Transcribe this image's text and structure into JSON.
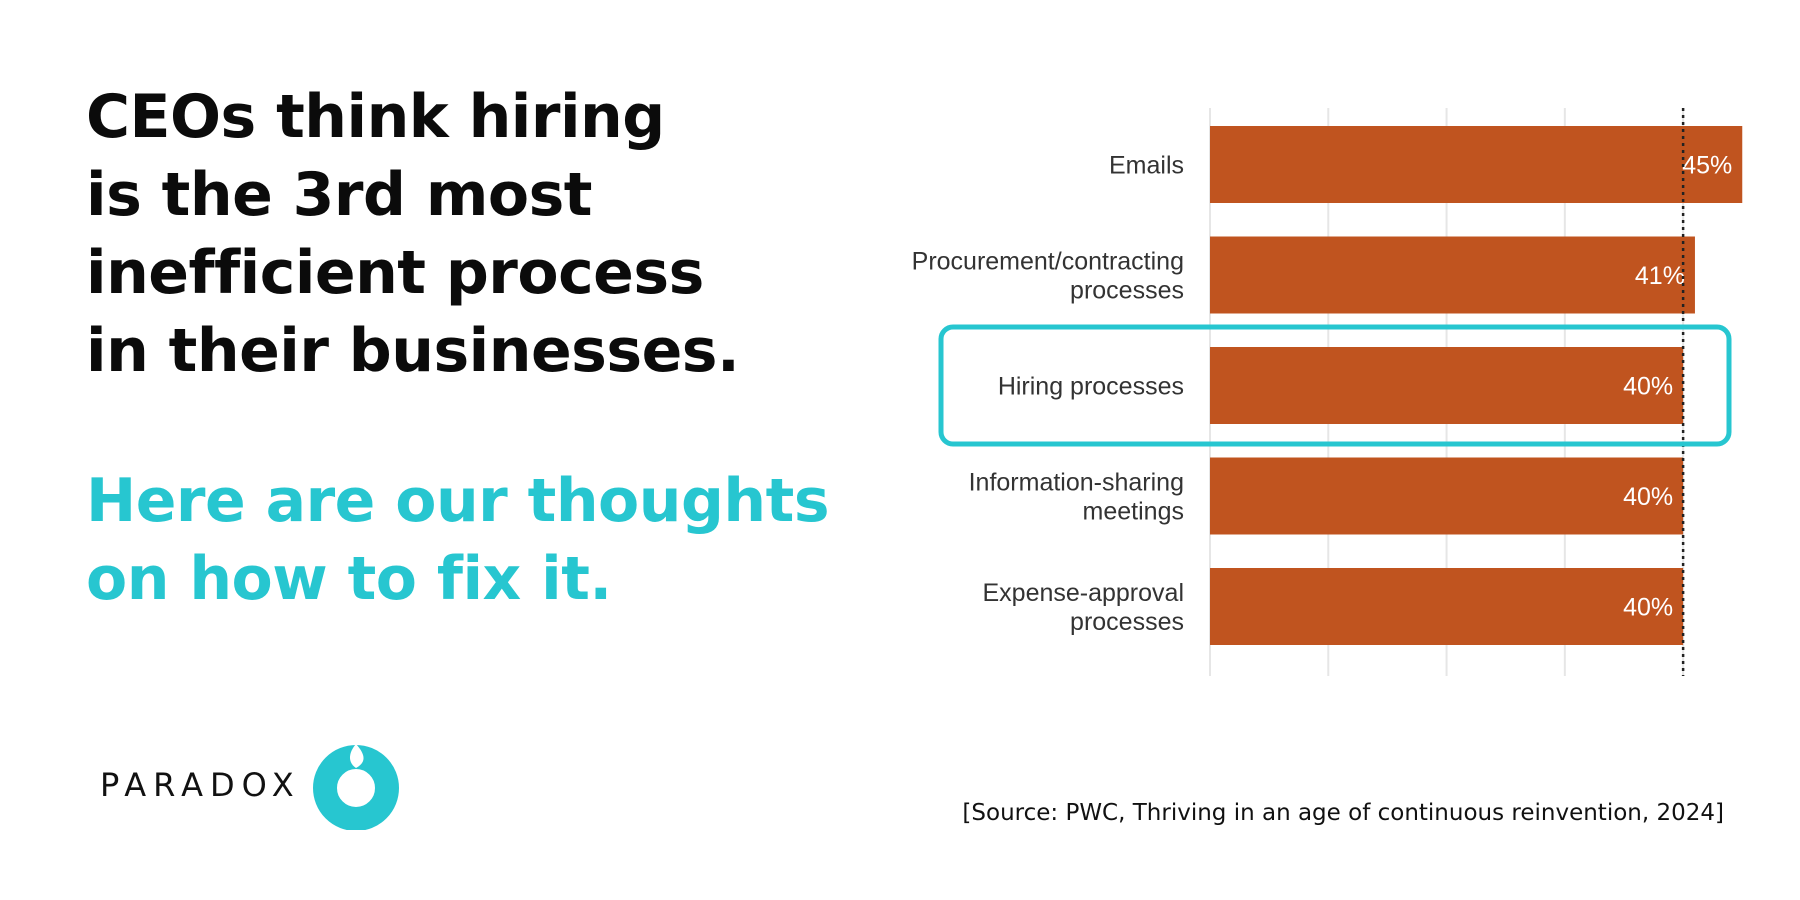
{
  "headline": {
    "lines": [
      "CEOs think hiring",
      "is the 3rd most",
      "inefficient process",
      "in their businesses."
    ]
  },
  "subhead": {
    "lines": [
      "Here are our thoughts",
      "on how to fix it."
    ]
  },
  "logo": {
    "wordmark": "PARADOX"
  },
  "source": "[Source: PWC, Thriving in an age of continuous reinvention, 2024]",
  "colors": {
    "bar": "#c0541f",
    "highlight": "#27c6d0",
    "headline": "#0b0b0b",
    "subhead": "#27c6d0",
    "grid": "#e6e6e6"
  },
  "chart_data": {
    "type": "bar",
    "orientation": "horizontal",
    "categories": [
      [
        "Emails"
      ],
      [
        "Procurement/contracting",
        "processes"
      ],
      [
        "Hiring processes"
      ],
      [
        "Information-sharing",
        "meetings"
      ],
      [
        "Expense-approval",
        "processes"
      ]
    ],
    "values": [
      45,
      41,
      40,
      40,
      40
    ],
    "value_labels": [
      "45%",
      "41%",
      "40%",
      "40%",
      "40%"
    ],
    "xlim": [
      0,
      46.5
    ],
    "grid": true,
    "reference_line": 40,
    "highlighted_category_index": 2
  }
}
